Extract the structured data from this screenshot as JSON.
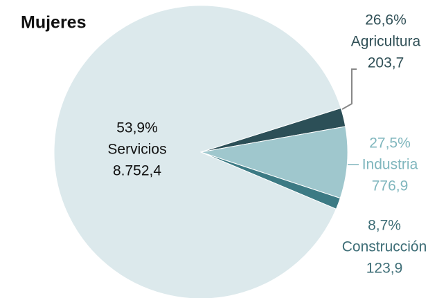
{
  "chart_data": {
    "type": "pie",
    "title": "Mujeres",
    "categories": [
      "Agricultura",
      "Industria",
      "Construcción",
      "Servicios"
    ],
    "values": [
      203.7,
      776.9,
      123.9,
      8752.4
    ],
    "value_labels": [
      "203,7",
      "776,9",
      "123,9",
      "8.752,4"
    ],
    "percentages": [
      26.6,
      27.5,
      8.7,
      53.9
    ],
    "percentage_labels": [
      "26,6%",
      "27,5%",
      "8,7%",
      "53,9%"
    ],
    "colors": [
      "#2c4f57",
      "#9fc7cd",
      "#3c7a84",
      "#dce9ec"
    ],
    "label_colors": [
      "#2f4f56",
      "#7fb6bd",
      "#3e6e77",
      "#111111"
    ]
  }
}
